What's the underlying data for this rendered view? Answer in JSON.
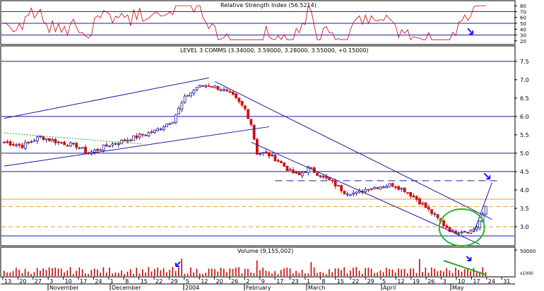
{
  "chart_data": [
    {
      "type": "line",
      "panel": "rsi",
      "title": "Relative Strength Index (56.5214)",
      "yticks": [
        "80",
        "70",
        "60",
        "50",
        "40",
        "30",
        "20"
      ],
      "ylim": [
        15,
        85
      ],
      "hlines": [
        30,
        50,
        70
      ],
      "color": "#cc0000"
    },
    {
      "type": "candlestick",
      "panel": "price",
      "title": "LEVEL 3 COMMS (3.34000, 3.59000, 3.28000, 3.55000, +0.15000)",
      "yticks": [
        "7.5",
        "7.0",
        "6.5",
        "6.0",
        "5.5",
        "5.0",
        "4.5",
        "4.0",
        "3.5",
        "3.0"
      ],
      "ylim": [
        2.5,
        7.9
      ],
      "hlines_blue": [
        7.5,
        6.0,
        5.0,
        4.5,
        2.75
      ],
      "hlines_orange_dashed": [
        3.55,
        3.0
      ],
      "hline_blue_dashed": 4.25,
      "hline_orange_solid": 3.75,
      "up_color": "#1a1a9a",
      "down_color": "#d01010",
      "anchors": [
        [
          0,
          5.3
        ],
        [
          6,
          5.2
        ],
        [
          12,
          5.45
        ],
        [
          18,
          5.3
        ],
        [
          24,
          5.2
        ],
        [
          28,
          5.0
        ],
        [
          34,
          5.2
        ],
        [
          40,
          5.35
        ],
        [
          46,
          5.5
        ],
        [
          50,
          5.6
        ],
        [
          56,
          5.9
        ],
        [
          60,
          6.5
        ],
        [
          64,
          6.8
        ],
        [
          68,
          6.85
        ],
        [
          72,
          6.75
        ],
        [
          76,
          6.55
        ],
        [
          80,
          6.2
        ],
        [
          82,
          5.8
        ],
        [
          84,
          5.0
        ],
        [
          87,
          5.0
        ],
        [
          91,
          4.8
        ],
        [
          95,
          4.5
        ],
        [
          98,
          4.4
        ],
        [
          101,
          4.6
        ],
        [
          105,
          4.4
        ],
        [
          109,
          4.2
        ],
        [
          113,
          3.95
        ],
        [
          117,
          3.9
        ],
        [
          121,
          4.05
        ],
        [
          125,
          4.1
        ],
        [
          129,
          4.15
        ],
        [
          133,
          4.0
        ],
        [
          137,
          3.75
        ],
        [
          141,
          3.45
        ],
        [
          143,
          3.3
        ],
        [
          146,
          3.05
        ],
        [
          149,
          2.85
        ],
        [
          152,
          2.9
        ],
        [
          155,
          2.88
        ],
        [
          157,
          3.0
        ],
        [
          159,
          3.3
        ],
        [
          160,
          3.55
        ]
      ],
      "channels": [
        {
          "from": [
            0,
            5.95
          ],
          "to": [
            68,
            7.05
          ]
        },
        {
          "from": [
            0,
            4.65
          ],
          "to": [
            88,
            5.72
          ]
        },
        {
          "from": [
            70,
            6.95
          ],
          "to": [
            162,
            3.2
          ]
        },
        {
          "from": [
            82,
            5.3
          ],
          "to": [
            158,
            2.52
          ]
        },
        {
          "from": [
            156,
            2.85
          ],
          "to": [
            162,
            4.2
          ]
        }
      ],
      "colors": {
        "channel": "#1a1aa0",
        "trend_dotted": "#22aa22",
        "circle": "#22bb22",
        "arrow": "#1a1aff"
      }
    },
    {
      "type": "bar",
      "panel": "volume",
      "title": "Volume (9,155,002)",
      "yticks": [
        "50000",
        "x1000"
      ],
      "color": "#cc0000",
      "trend_line_color": "#22aa22"
    }
  ],
  "x_axis": {
    "days": [
      "13",
      "20",
      "27",
      "3",
      "10",
      "17",
      "24",
      "1",
      "8",
      "15",
      "22",
      "29",
      "5",
      "12",
      "20",
      "26",
      "2",
      "9",
      "17",
      "23",
      "1",
      "8",
      "15",
      "22",
      "29",
      "5",
      "12",
      "19",
      "26",
      "3",
      "10",
      "17",
      "24",
      "31"
    ],
    "months": [
      "November",
      "December",
      "2004",
      "February",
      "March",
      "April",
      "May"
    ]
  }
}
